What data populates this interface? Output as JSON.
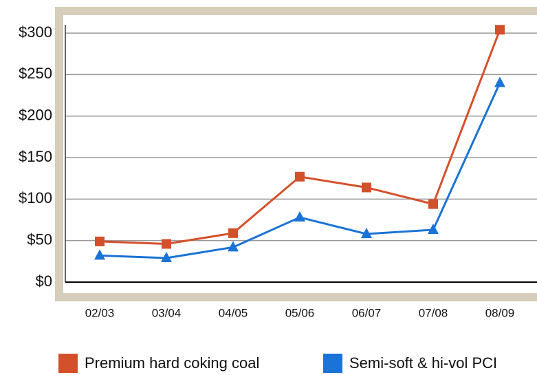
{
  "chart_data": {
    "type": "line",
    "categories": [
      "02/03",
      "03/04",
      "04/05",
      "05/06",
      "06/07",
      "07/08",
      "08/09"
    ],
    "series": [
      {
        "name": "Premium hard coking coal",
        "color": "#d4502a",
        "values": [
          49,
          46,
          59,
          127,
          114,
          94,
          304
        ]
      },
      {
        "name": "Semi-soft & hi-vol PCI",
        "color": "#1a73d6",
        "values": [
          32,
          29,
          42,
          78,
          58,
          63,
          240
        ]
      }
    ],
    "ylim": [
      0,
      310
    ],
    "yticks": [
      {
        "value": 0,
        "label": "$0"
      },
      {
        "value": 50,
        "label": "$50"
      },
      {
        "value": 100,
        "label": "$100"
      },
      {
        "value": 150,
        "label": "$150"
      },
      {
        "value": 200,
        "label": "$200"
      },
      {
        "value": 250,
        "label": "$250"
      },
      {
        "value": 300,
        "label": "$300"
      }
    ],
    "grid": true
  }
}
